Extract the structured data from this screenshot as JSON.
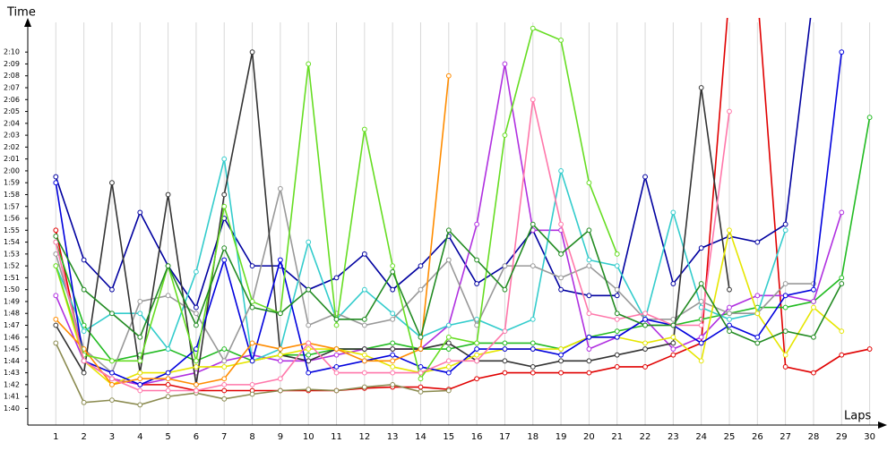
{
  "chart_data": {
    "type": "line",
    "y_label": "Time",
    "x_label": "Laps",
    "x": [
      1,
      2,
      3,
      4,
      5,
      6,
      7,
      8,
      9,
      10,
      11,
      12,
      13,
      14,
      15,
      16,
      17,
      18,
      19,
      20,
      21,
      22,
      23,
      24,
      25,
      26,
      27,
      28,
      29,
      30
    ],
    "xlim": [
      0,
      30.3
    ],
    "xticks": [
      1,
      2,
      3,
      4,
      5,
      6,
      7,
      8,
      9,
      10,
      11,
      12,
      13,
      14,
      15,
      16,
      17,
      18,
      19,
      20,
      21,
      22,
      23,
      24,
      25,
      26,
      27,
      28,
      29,
      30
    ],
    "ylim": [
      98.6,
      132.5
    ],
    "yticks": [
      {
        "value": 100,
        "label": "1:40"
      },
      {
        "value": 101,
        "label": "1:41"
      },
      {
        "value": 102,
        "label": "1:42"
      },
      {
        "value": 103,
        "label": "1:43"
      },
      {
        "value": 104,
        "label": "1:44"
      },
      {
        "value": 105,
        "label": "1:45"
      },
      {
        "value": 106,
        "label": "1:46"
      },
      {
        "value": 107,
        "label": "1:47"
      },
      {
        "value": 108,
        "label": "1:48"
      },
      {
        "value": 109,
        "label": "1:49"
      },
      {
        "value": 110,
        "label": "1:50"
      },
      {
        "value": 111,
        "label": "1:51"
      },
      {
        "value": 112,
        "label": "1:52"
      },
      {
        "value": 113,
        "label": "1:53"
      },
      {
        "value": 114,
        "label": "1:54"
      },
      {
        "value": 115,
        "label": "1:55"
      },
      {
        "value": 116,
        "label": "1:56"
      },
      {
        "value": 117,
        "label": "1:57"
      },
      {
        "value": 118,
        "label": "1:58"
      },
      {
        "value": 119,
        "label": "1:59"
      },
      {
        "value": 120,
        "label": "2:00"
      },
      {
        "value": 121,
        "label": "2:01"
      },
      {
        "value": 122,
        "label": "2:02"
      },
      {
        "value": 123,
        "label": "2:03"
      },
      {
        "value": 124,
        "label": "2:04"
      },
      {
        "value": 125,
        "label": "2:05"
      },
      {
        "value": 126,
        "label": "2:06"
      },
      {
        "value": 127,
        "label": "2:07"
      },
      {
        "value": 128,
        "label": "2:08"
      },
      {
        "value": 129,
        "label": "2:09"
      },
      {
        "value": 130,
        "label": "2:10"
      }
    ],
    "grid": true,
    "series": [
      {
        "color": "#e00000",
        "values": [
          115,
          104,
          102.5,
          102,
          102,
          101.5,
          101.5,
          101.5,
          101.5,
          101.5,
          101.5,
          101.7,
          101.8,
          101.8,
          101.6,
          102.5,
          103,
          103,
          103,
          103,
          103.5,
          103.5,
          104.5,
          105.5,
          135,
          135,
          103.5,
          103,
          104.5,
          105
        ]
      },
      {
        "color": "#8b8b50",
        "values": [
          105.5,
          100.5,
          100.7,
          100.3,
          101,
          101.3,
          100.8,
          101.2,
          101.5,
          101.6,
          101.5,
          101.8,
          102,
          101.4,
          101.5,
          null,
          null,
          null,
          null,
          null,
          null,
          null,
          null,
          null,
          null,
          null,
          null,
          null,
          null,
          null
        ]
      },
      {
        "color": "#0000a0",
        "values": [
          119.5,
          112.5,
          110,
          116.5,
          112,
          108.5,
          116,
          112,
          112,
          110,
          111,
          113,
          110,
          112,
          114.5,
          110.5,
          112,
          115,
          110,
          109.5,
          109.5,
          119.5,
          110.5,
          113.5,
          114.5,
          114,
          115.5,
          135,
          null,
          null
        ]
      },
      {
        "color": "#22bb22",
        "values": [
          114,
          107,
          104,
          104.5,
          105,
          104,
          105,
          104,
          104.5,
          104.5,
          105,
          105,
          105.5,
          105,
          105,
          105.5,
          105.5,
          105.5,
          105,
          106,
          106.5,
          107,
          107,
          107.5,
          108,
          108.5,
          108.5,
          109,
          111,
          124.5
        ]
      },
      {
        "color": "#b030e0",
        "values": [
          109.5,
          104,
          102.5,
          102,
          102.5,
          103,
          104,
          104.5,
          104,
          104,
          104.5,
          105,
          105,
          105,
          107,
          115.5,
          129,
          115,
          115,
          105,
          106,
          107.5,
          105,
          106,
          108.5,
          109.5,
          109.5,
          109,
          116.5,
          null
        ]
      },
      {
        "color": "#33cccc",
        "values": [
          112,
          106.5,
          108,
          108,
          105,
          111.5,
          121,
          104,
          105,
          114,
          107.5,
          110,
          108,
          106,
          107,
          107.5,
          106.5,
          107.5,
          120,
          112.5,
          112,
          107.5,
          116.5,
          108.5,
          107.5,
          108,
          115,
          null,
          null,
          null
        ]
      },
      {
        "color": "#999999",
        "values": [
          113,
          105,
          103,
          109,
          109.5,
          108,
          104,
          109,
          118.5,
          107,
          108,
          107,
          107.5,
          110,
          112.5,
          107,
          112,
          112,
          111,
          112,
          110,
          107.5,
          107.5,
          109,
          108,
          108,
          110.5,
          110.5,
          null,
          null
        ]
      },
      {
        "color": "#333333",
        "values": [
          107,
          103,
          119,
          103,
          118,
          102,
          118,
          130,
          104.5,
          104,
          105,
          105,
          105,
          105,
          105.5,
          104,
          104,
          103.5,
          104,
          104,
          104.5,
          105,
          105.5,
          127,
          110,
          null,
          null,
          null,
          null,
          null
        ]
      },
      {
        "color": "#e6e600",
        "values": [
          112,
          104,
          102,
          103,
          103,
          103.5,
          103.5,
          104,
          104.5,
          105,
          105,
          104.5,
          103.5,
          103,
          103.5,
          104.5,
          105,
          105,
          105,
          106,
          106,
          105.5,
          106,
          104,
          115,
          108,
          104.5,
          108.5,
          106.5,
          null
        ]
      },
      {
        "color": "#0000dd",
        "values": [
          119,
          104,
          103,
          102,
          103,
          105,
          112.5,
          104,
          112.5,
          103,
          103.5,
          104,
          104.5,
          103.5,
          103,
          105,
          105,
          105,
          104.5,
          106,
          106,
          107.5,
          107,
          105.5,
          107,
          106,
          109.5,
          110,
          130,
          null
        ]
      },
      {
        "color": "#ff8c00",
        "values": [
          107.5,
          105,
          102,
          102.5,
          102.5,
          102,
          102.5,
          105.5,
          105,
          105.5,
          105,
          104,
          104,
          105,
          128,
          null,
          null,
          null,
          null,
          null,
          null,
          null,
          null,
          null,
          null,
          null,
          null,
          null,
          null,
          null
        ]
      },
      {
        "color": "#66dd22",
        "values": [
          112,
          104.5,
          104,
          104,
          112,
          104,
          117,
          109,
          108,
          129,
          107,
          123.5,
          112,
          102.5,
          106,
          105.5,
          123,
          132,
          131,
          119,
          113,
          null,
          null,
          null,
          null,
          null,
          null,
          null,
          null,
          null
        ]
      },
      {
        "color": "#ff77aa",
        "values": [
          114,
          104,
          102.5,
          101.5,
          101.5,
          101.5,
          102,
          102,
          102.5,
          105.5,
          103,
          103,
          103,
          103,
          104,
          104,
          106.5,
          126,
          115.5,
          108,
          107.5,
          108,
          107,
          107,
          125,
          null,
          null,
          null,
          null,
          null
        ]
      },
      {
        "color": "#228b22",
        "values": [
          114.5,
          110,
          108,
          106,
          112,
          107,
          113.5,
          108.5,
          108,
          110,
          107.5,
          107.5,
          111.5,
          106,
          115,
          112.5,
          110,
          115.5,
          113,
          115,
          108,
          107,
          107,
          110.5,
          106.5,
          105.5,
          106.5,
          106,
          110.5,
          null
        ]
      }
    ]
  }
}
